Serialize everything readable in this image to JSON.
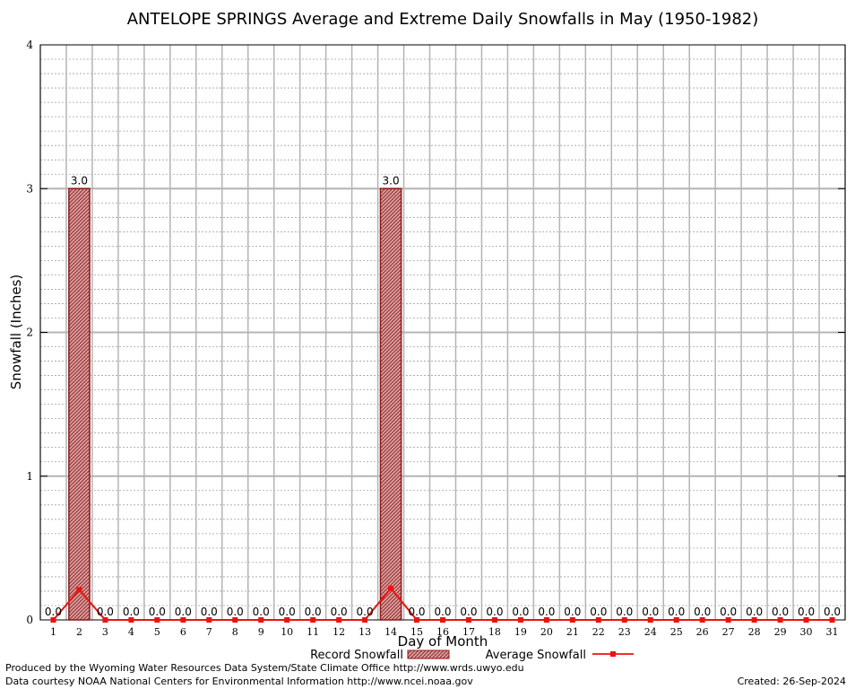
{
  "chart_data": {
    "type": "bar",
    "title": "ANTELOPE SPRINGS Average and Extreme Daily Snowfalls in May (1950-1982)",
    "xlabel": "Day of Month",
    "ylabel": "Snowfall (Inches)",
    "categories": [
      "1",
      "2",
      "3",
      "4",
      "5",
      "6",
      "7",
      "8",
      "9",
      "10",
      "11",
      "12",
      "13",
      "14",
      "15",
      "16",
      "17",
      "18",
      "19",
      "20",
      "21",
      "22",
      "23",
      "24",
      "25",
      "26",
      "27",
      "28",
      "29",
      "30",
      "31"
    ],
    "yticks": [
      "0",
      "1",
      "2",
      "3",
      "4"
    ],
    "ylim": [
      0,
      4
    ],
    "grid": true,
    "series": [
      {
        "name": "Record Snowfall",
        "type": "bar",
        "color": "#cc0000",
        "values": [
          0.0,
          3.0,
          0.0,
          0.0,
          0.0,
          0.0,
          0.0,
          0.0,
          0.0,
          0.0,
          0.0,
          0.0,
          0.0,
          3.0,
          0.0,
          0.0,
          0.0,
          0.0,
          0.0,
          0.0,
          0.0,
          0.0,
          0.0,
          0.0,
          0.0,
          0.0,
          0.0,
          0.0,
          0.0,
          0.0,
          0.0
        ],
        "labels": [
          "0.0",
          "3.0",
          "0.0",
          "0.0",
          "0.0",
          "0.0",
          "0.0",
          "0.0",
          "0.0",
          "0.0",
          "0.0",
          "0.0",
          "0.0",
          "3.0",
          "0.0",
          "0.0",
          "0.0",
          "0.0",
          "0.0",
          "0.0",
          "0.0",
          "0.0",
          "0.0",
          "0.0",
          "0.0",
          "0.0",
          "0.0",
          "0.0",
          "0.0",
          "0.0",
          "0.0"
        ]
      },
      {
        "name": "Average Snowfall",
        "type": "line",
        "color": "#ee1111",
        "values": [
          0.0,
          0.21,
          0.0,
          0.0,
          0.0,
          0.0,
          0.0,
          0.0,
          0.0,
          0.0,
          0.0,
          0.0,
          0.0,
          0.22,
          0.0,
          0.0,
          0.0,
          0.0,
          0.0,
          0.0,
          0.0,
          0.0,
          0.0,
          0.0,
          0.0,
          0.0,
          0.0,
          0.0,
          0.0,
          0.0,
          0.0
        ]
      }
    ],
    "legend_placement": "bottom-center"
  },
  "footer": {
    "line1": "Produced by the Wyoming Water Resources Data System/State Climate Office http://www.wrds.uwyo.edu",
    "line2": "Data courtesy NOAA National Centers for Environmental Information http://www.ncei.noaa.gov",
    "created": "Created: 26-Sep-2024"
  }
}
